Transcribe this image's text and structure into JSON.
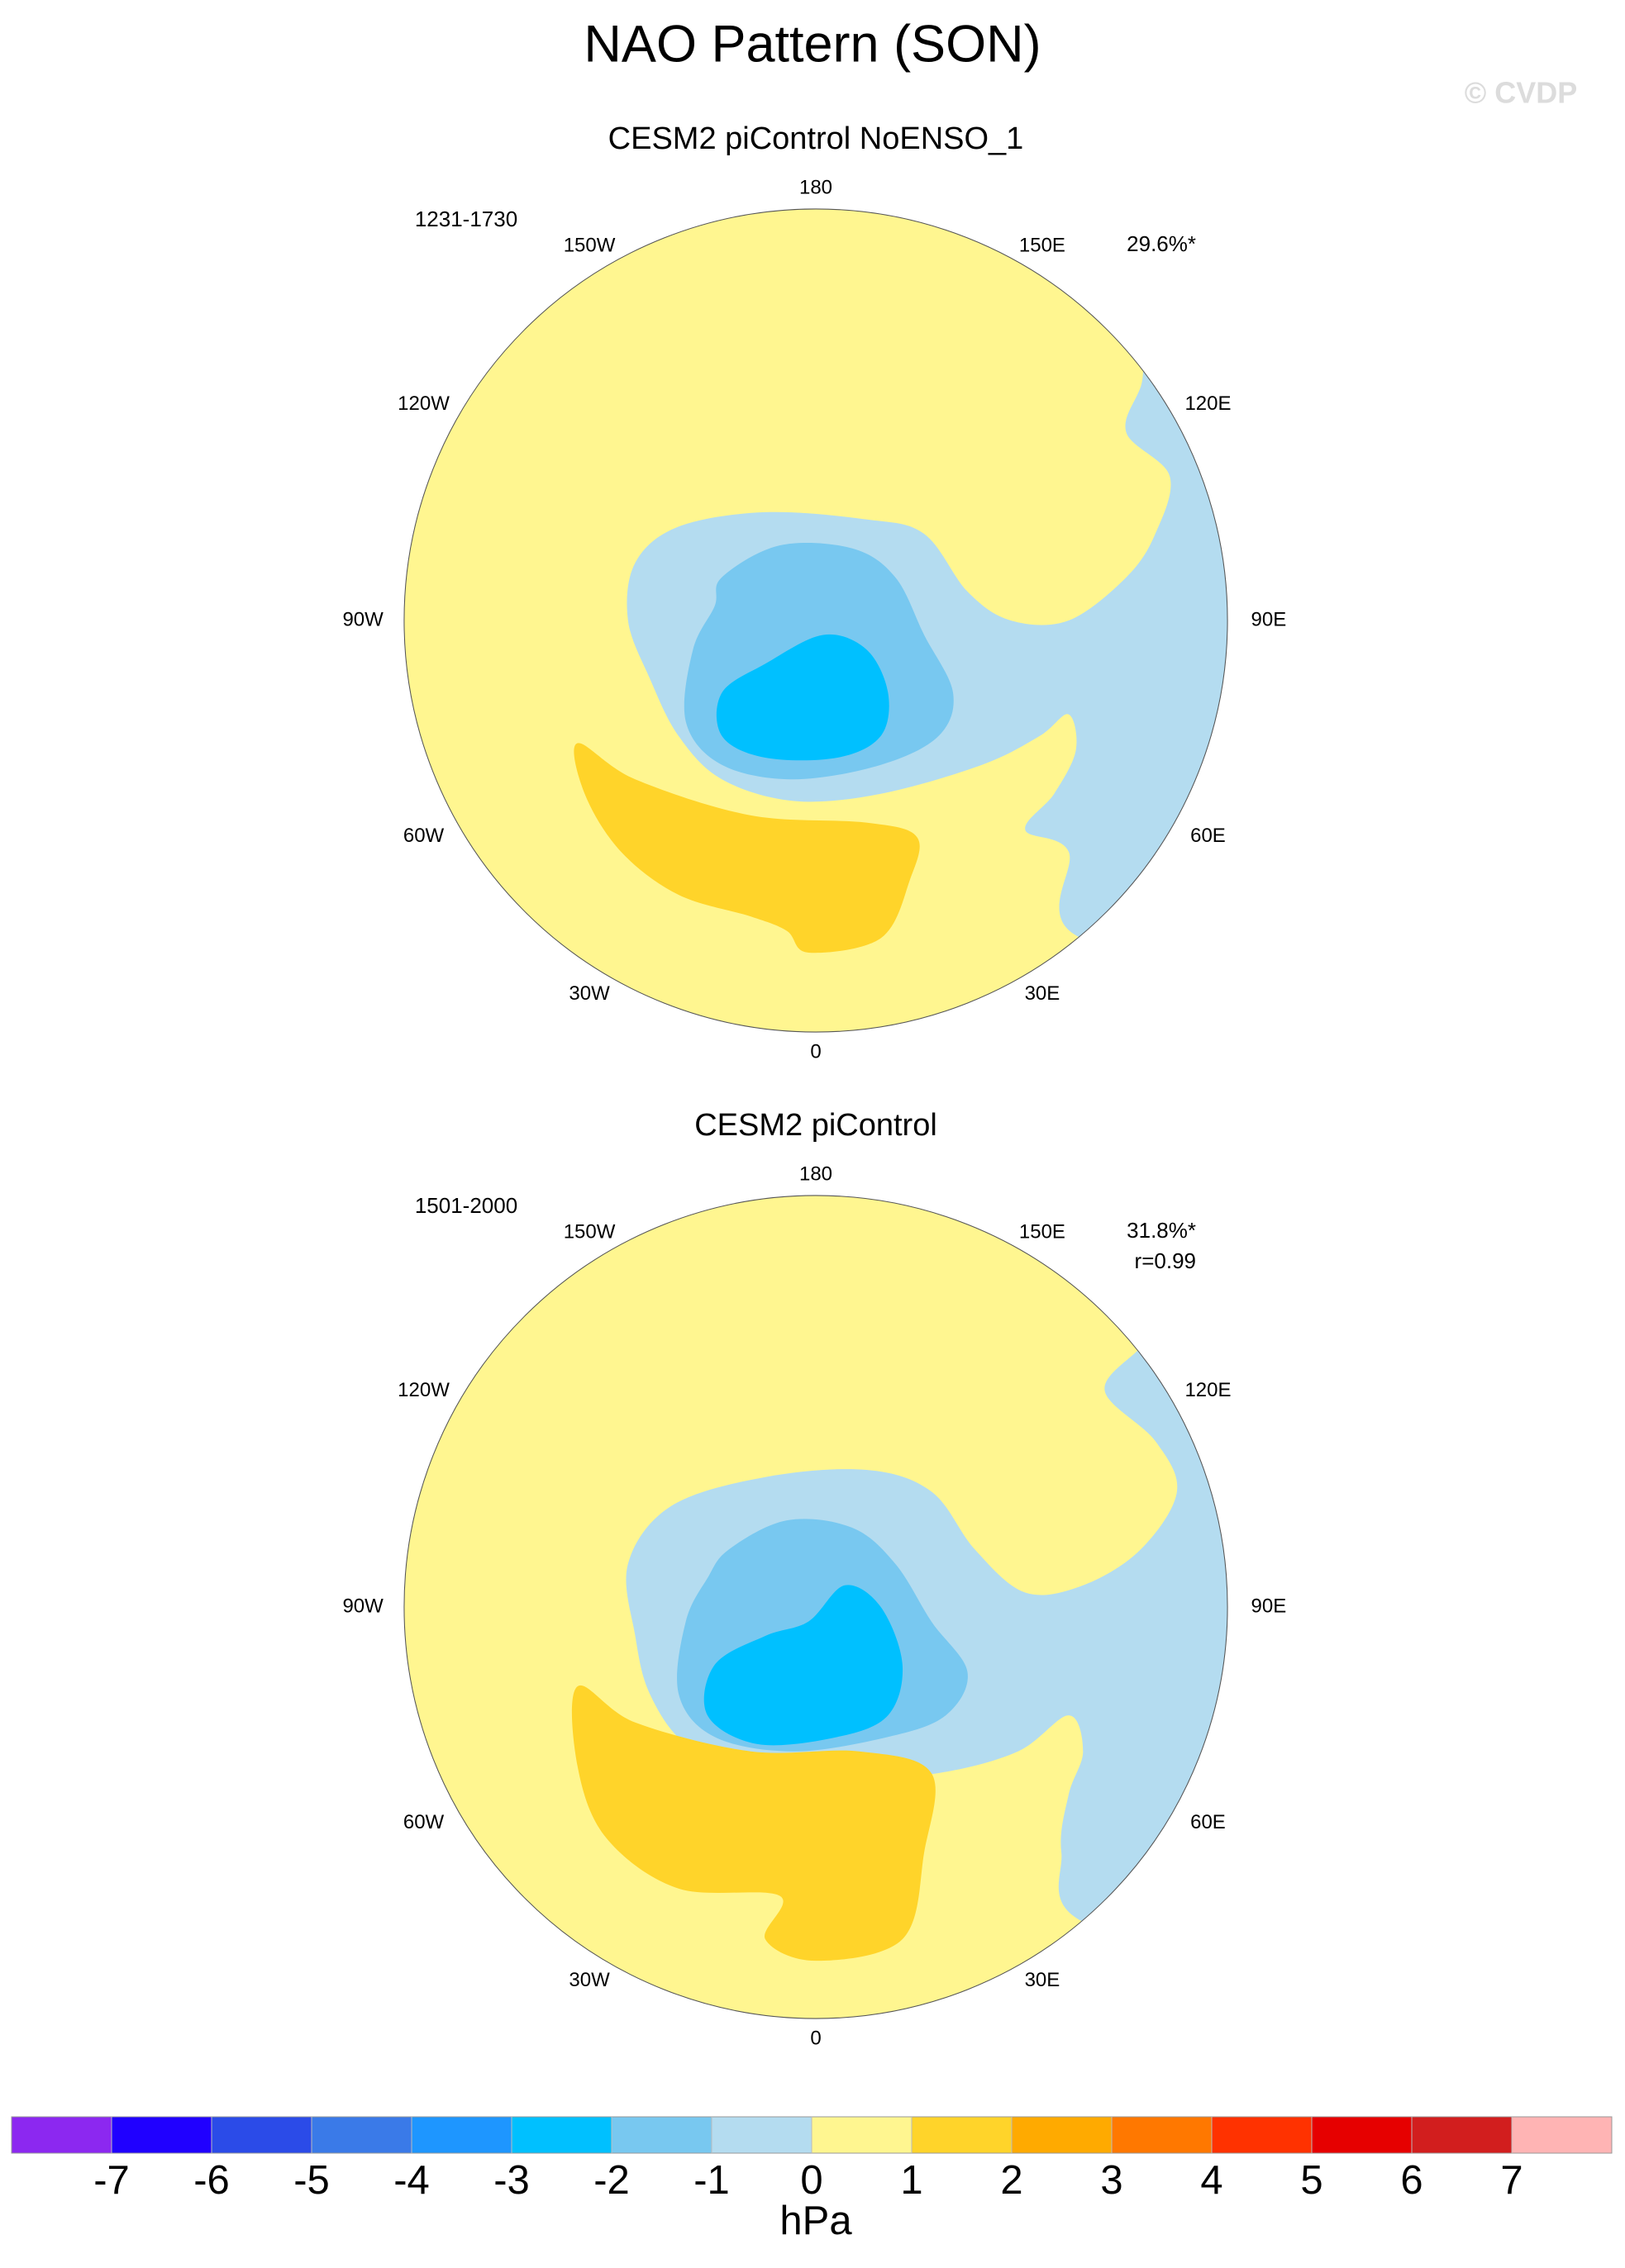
{
  "title": "NAO Pattern (SON)",
  "watermark": "© CVDP",
  "panels": [
    {
      "title": "CESM2 piControl NoENSO_1",
      "period": "1231-1730",
      "stats": [
        "29.6%*"
      ],
      "lon_labels": [
        "180",
        "150E",
        "120E",
        "90E",
        "60E",
        "30E",
        "0",
        "30W",
        "60W",
        "90W",
        "120W",
        "150W"
      ]
    },
    {
      "title": "CESM2 piControl",
      "period": "1501-2000",
      "stats": [
        "31.8%*",
        "r=0.99"
      ],
      "lon_labels": [
        "180",
        "150E",
        "120E",
        "90E",
        "60E",
        "30E",
        "0",
        "30W",
        "60W",
        "90W",
        "120W",
        "150W"
      ]
    }
  ],
  "colorbar": {
    "levels": [
      -7,
      -6,
      -5,
      -4,
      -3,
      -2,
      -1,
      0,
      1,
      2,
      3,
      4,
      5,
      6,
      7
    ],
    "colors": [
      "#8c28f0",
      "#2000ff",
      "#2b4be8",
      "#3a7ae8",
      "#1e96ff",
      "#00c0ff",
      "#78c8f0",
      "#b4dcf0",
      "#fff690",
      "#ffd42a",
      "#ffaa00",
      "#ff7800",
      "#ff3200",
      "#e60000",
      "#d21e1e",
      "#ffb4b4"
    ],
    "label": "hPa"
  }
}
